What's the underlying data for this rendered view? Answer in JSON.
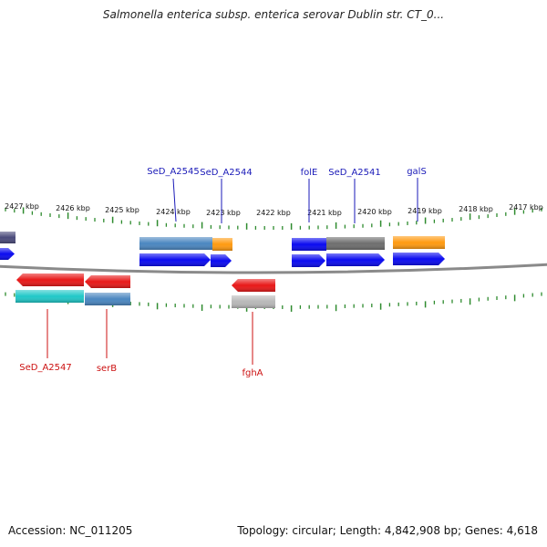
{
  "title": "Salmonella enterica subsp. enterica serovar Dublin str. CT_0...",
  "footer": {
    "accession": "Accession: NC_011205",
    "topology": "Topology: circular; Length: 4,842,908 bp; Genes: 4,618"
  },
  "colors": {
    "backbone": "#8a8a8a",
    "tick": "#2e8b2e",
    "forward_label": "#1a1ab8",
    "reverse_label": "#cc1111",
    "cds_forward": "#0a0af0",
    "cds_reverse": "#e81818",
    "cyan": "#20c8c8",
    "steelblue": "#4a86c0",
    "orange": "#ff9a10",
    "gray": "#6e6e6e",
    "lightgray": "#b8b8b8",
    "slate": "#4a4a7a"
  },
  "scale": {
    "ticks": [
      {
        "label": "2427 kbp"
      },
      {
        "label": "2426 kbp"
      },
      {
        "label": "2425 kbp"
      },
      {
        "label": "2424 kbp"
      },
      {
        "label": "2423 kbp"
      },
      {
        "label": "2422 kbp"
      },
      {
        "label": "2421 kbp"
      },
      {
        "label": "2420 kbp"
      },
      {
        "label": "2419 kbp"
      },
      {
        "label": "2418 kbp"
      },
      {
        "label": "2417 kbp"
      }
    ]
  },
  "forward_labels": [
    {
      "text": "SeD_A2545"
    },
    {
      "text": "SeD_A2544"
    },
    {
      "text": "folE"
    },
    {
      "text": "SeD_A2541"
    },
    {
      "text": "galS"
    }
  ],
  "reverse_labels": [
    {
      "text": "SeD_A2547"
    },
    {
      "text": "serB"
    },
    {
      "text": "fghA"
    }
  ]
}
